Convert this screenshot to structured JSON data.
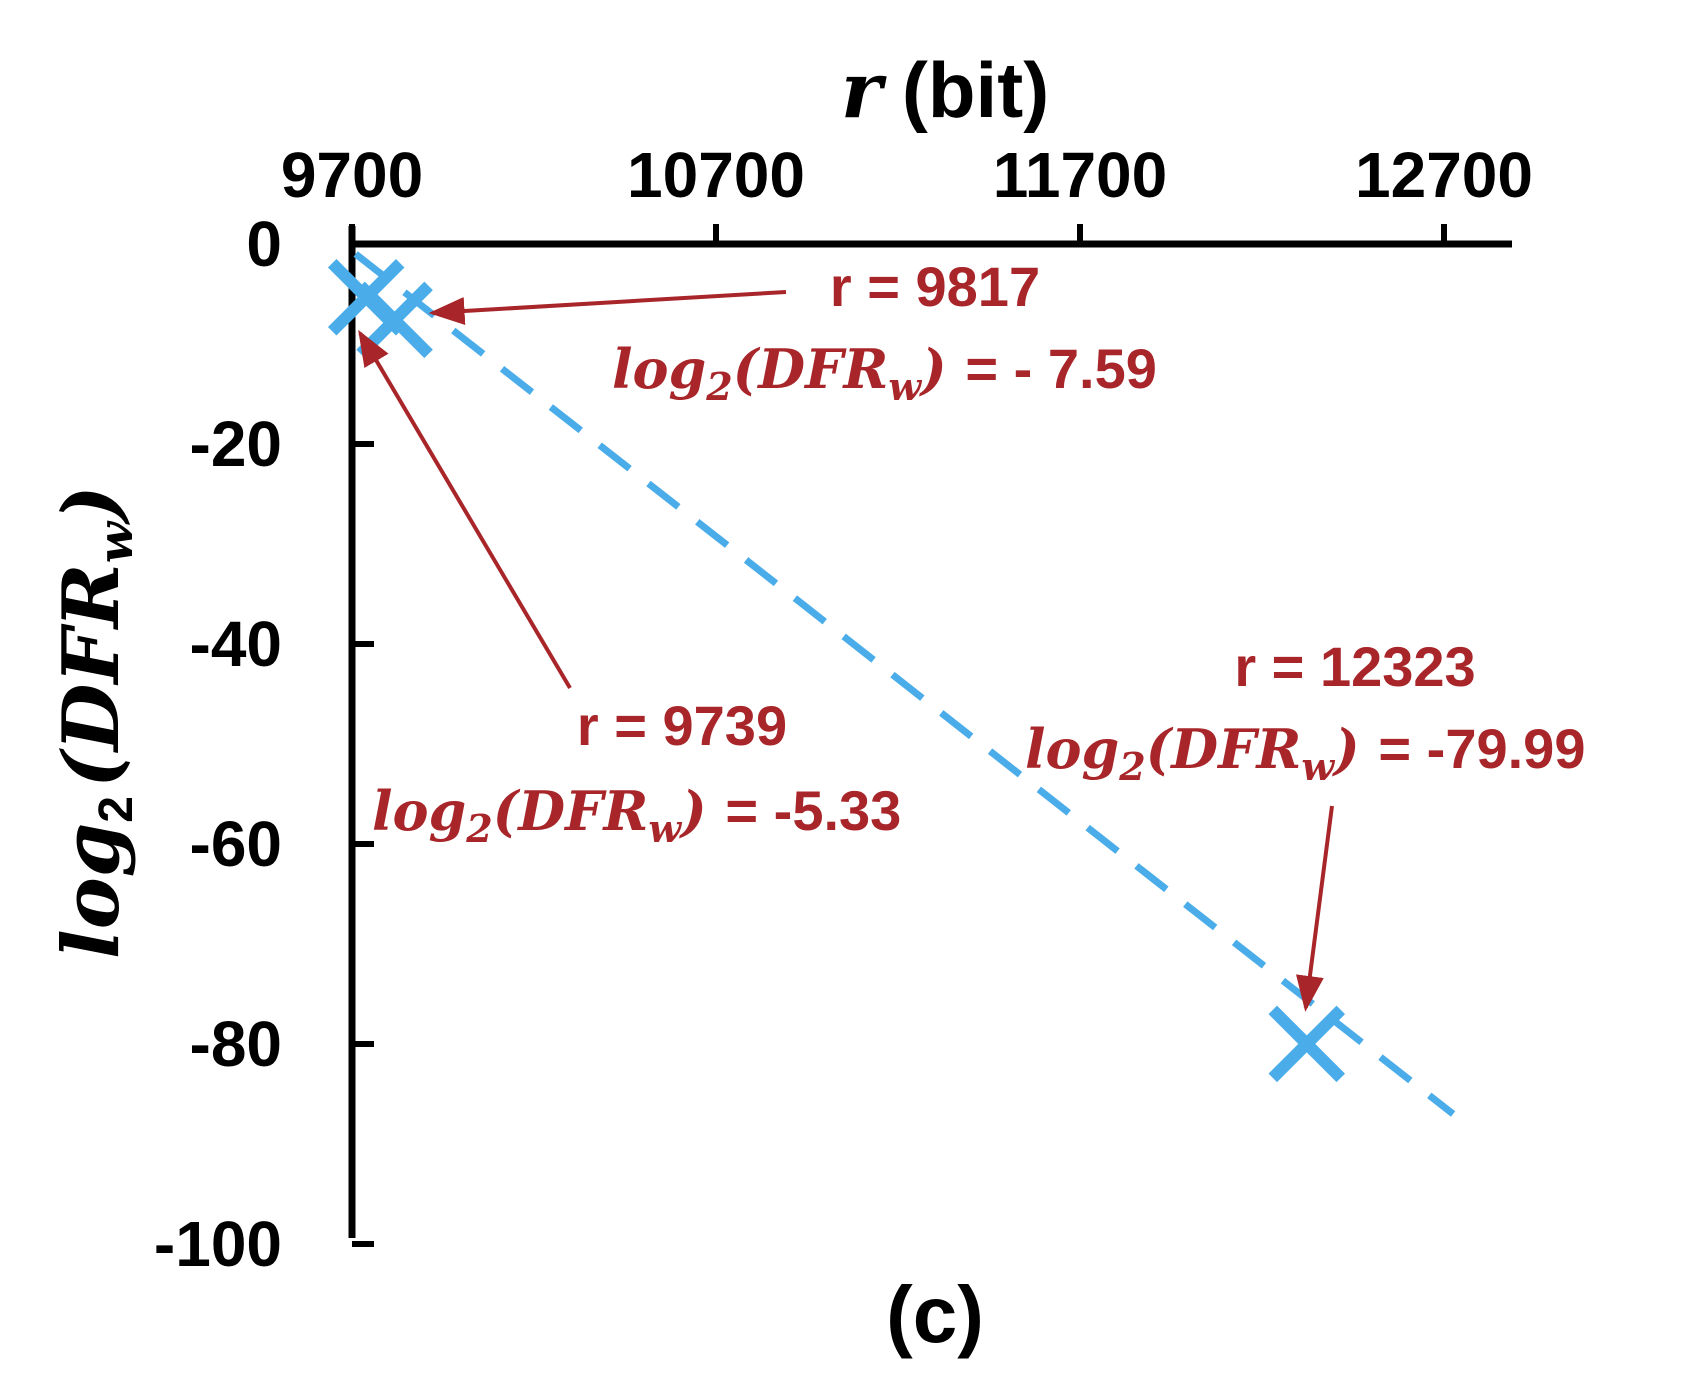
{
  "chart_data": {
    "type": "scatter",
    "title": "",
    "caption": "(c)",
    "xlabel": {
      "var": "r",
      "unit": "(bit)"
    },
    "ylabel": {
      "func": "log",
      "sub": "2",
      "arg": "DFR",
      "argsub": "w"
    },
    "xlim": [
      9700,
      12900
    ],
    "ylim": [
      -100,
      0
    ],
    "x_axis_position": "top",
    "xticks": [
      9700,
      10700,
      11700,
      12700
    ],
    "yticks": [
      0,
      -20,
      -40,
      -60,
      -80,
      -100
    ],
    "xtick_labels": [
      "9700",
      "10700",
      "11700",
      "12700"
    ],
    "ytick_labels": [
      "0",
      "-20",
      "-40",
      "-60",
      "-80",
      "-100"
    ],
    "series": [
      {
        "name": "points",
        "marker": "x",
        "color": "#4aace8",
        "points": [
          {
            "x": 9739,
            "y": -5.33
          },
          {
            "x": 9817,
            "y": -7.59
          },
          {
            "x": 12323,
            "y": -79.99
          }
        ]
      },
      {
        "name": "trend",
        "style": "dashed",
        "color": "#4aace8",
        "x": [
          9710,
          12725
        ],
        "y": [
          -1,
          -87
        ]
      }
    ],
    "annotations": [
      {
        "id": "a9817",
        "r_text": "r = 9817",
        "value_text": "= - 7.59",
        "target": {
          "x": 9817,
          "y": -7.59
        }
      },
      {
        "id": "a9739",
        "r_text": "r = 9739",
        "value_text": "= -5.33",
        "target": {
          "x": 9739,
          "y": -5.33
        }
      },
      {
        "id": "a12323",
        "r_text": "r = 12323",
        "value_text": "= -79.99",
        "target": {
          "x": 12323,
          "y": -79.99
        }
      }
    ],
    "annotation_color": "#a8262a"
  }
}
